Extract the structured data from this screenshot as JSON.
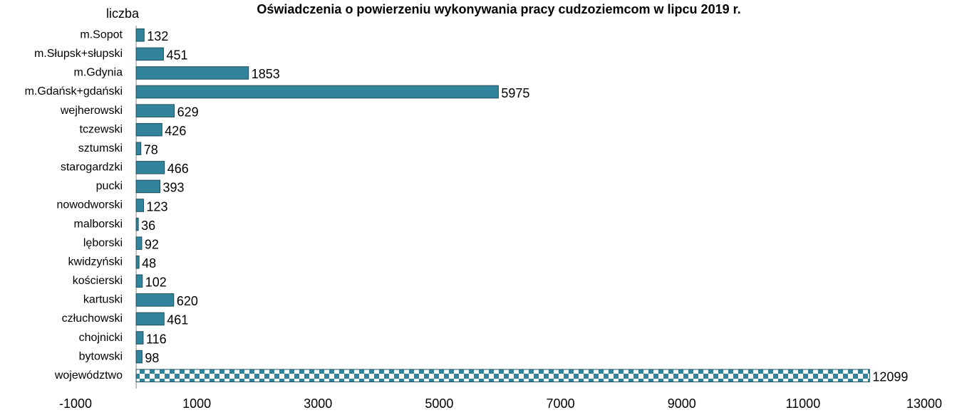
{
  "chart_data": {
    "type": "hbar",
    "title": "Oświadczenia o powierzeniu wykonywania pracy cudzoziemcom w lipcu 2019 r.",
    "y_label": "liczba",
    "categories": [
      "m.Sopot",
      "m.Słupsk+słupski",
      "m.Gdynia",
      "m.Gdańsk+gdański",
      "wejherowski",
      "tczewski",
      "sztumski",
      "starogardzki",
      "pucki",
      "nowodworski",
      "malborski",
      "lęborski",
      "kwidzyński",
      "kościerski",
      "kartuski",
      "człuchowski",
      "chojnicki",
      "bytowski",
      "województwo"
    ],
    "values": [
      132,
      451,
      1853,
      5975,
      629,
      426,
      78,
      466,
      393,
      123,
      36,
      92,
      48,
      102,
      620,
      461,
      116,
      98,
      12099
    ],
    "fill_patterns": [
      "solid",
      "solid",
      "solid",
      "solid",
      "solid",
      "solid",
      "solid",
      "solid",
      "solid",
      "solid",
      "solid",
      "solid",
      "solid",
      "solid",
      "solid",
      "solid",
      "solid",
      "solid",
      "checker"
    ],
    "color": "#31849b",
    "xlim": [
      -1000,
      13000
    ],
    "xticks": [
      -1000,
      1000,
      3000,
      5000,
      7000,
      9000,
      11000,
      13000
    ],
    "grid": false
  }
}
